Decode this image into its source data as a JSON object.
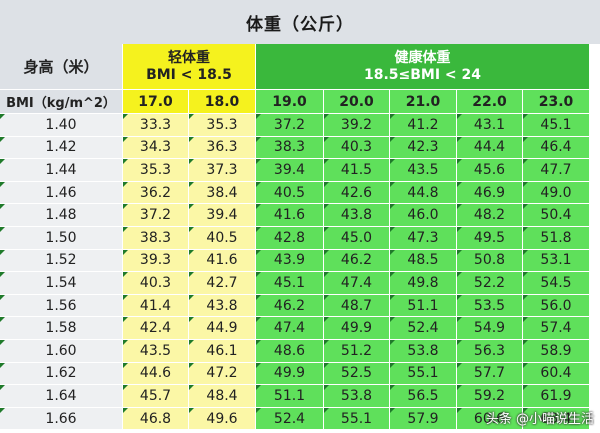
{
  "title": "体重（公斤）",
  "header": {
    "height_label": "身高（米）",
    "light": {
      "name": "轻体重",
      "range": "BMI < 18.5"
    },
    "healthy": {
      "name": "健康体重",
      "range": "18.5≤BMI < 24"
    },
    "bmi_label": "BMI（kg/m^2）",
    "bmi_values": [
      "17.0",
      "18.0",
      "19.0",
      "20.0",
      "21.0",
      "22.0",
      "23.0"
    ]
  },
  "rows": [
    {
      "h": "1.40",
      "w": [
        "33.3",
        "35.3",
        "37.2",
        "39.2",
        "41.2",
        "43.1",
        "45.1"
      ]
    },
    {
      "h": "1.42",
      "w": [
        "34.3",
        "36.3",
        "38.3",
        "40.3",
        "42.3",
        "44.4",
        "46.4"
      ]
    },
    {
      "h": "1.44",
      "w": [
        "35.3",
        "37.3",
        "39.4",
        "41.5",
        "43.5",
        "45.6",
        "47.7"
      ]
    },
    {
      "h": "1.46",
      "w": [
        "36.2",
        "38.4",
        "40.5",
        "42.6",
        "44.8",
        "46.9",
        "49.0"
      ]
    },
    {
      "h": "1.48",
      "w": [
        "37.2",
        "39.4",
        "41.6",
        "43.8",
        "46.0",
        "48.2",
        "50.4"
      ]
    },
    {
      "h": "1.50",
      "w": [
        "38.3",
        "40.5",
        "42.8",
        "45.0",
        "47.3",
        "49.5",
        "51.8"
      ]
    },
    {
      "h": "1.52",
      "w": [
        "39.3",
        "41.6",
        "43.9",
        "46.2",
        "48.5",
        "50.8",
        "53.1"
      ]
    },
    {
      "h": "1.54",
      "w": [
        "40.3",
        "42.7",
        "45.1",
        "47.4",
        "49.8",
        "52.2",
        "54.5"
      ]
    },
    {
      "h": "1.56",
      "w": [
        "41.4",
        "43.8",
        "46.2",
        "48.7",
        "51.1",
        "53.5",
        "56.0"
      ]
    },
    {
      "h": "1.58",
      "w": [
        "42.4",
        "44.9",
        "47.4",
        "49.9",
        "52.4",
        "54.9",
        "57.4"
      ]
    },
    {
      "h": "1.60",
      "w": [
        "43.5",
        "46.1",
        "48.6",
        "51.2",
        "53.8",
        "56.3",
        "58.9"
      ]
    },
    {
      "h": "1.62",
      "w": [
        "44.6",
        "47.2",
        "49.9",
        "52.5",
        "55.1",
        "57.7",
        "60.4"
      ]
    },
    {
      "h": "1.64",
      "w": [
        "45.7",
        "48.4",
        "51.1",
        "53.8",
        "56.5",
        "59.2",
        "61.9"
      ]
    },
    {
      "h": "1.66",
      "w": [
        "46.8",
        "49.6",
        "52.4",
        "55.1",
        "57.9",
        "60.6",
        "63.4"
      ]
    }
  ],
  "watermark": "头条 @小喵说生活"
}
